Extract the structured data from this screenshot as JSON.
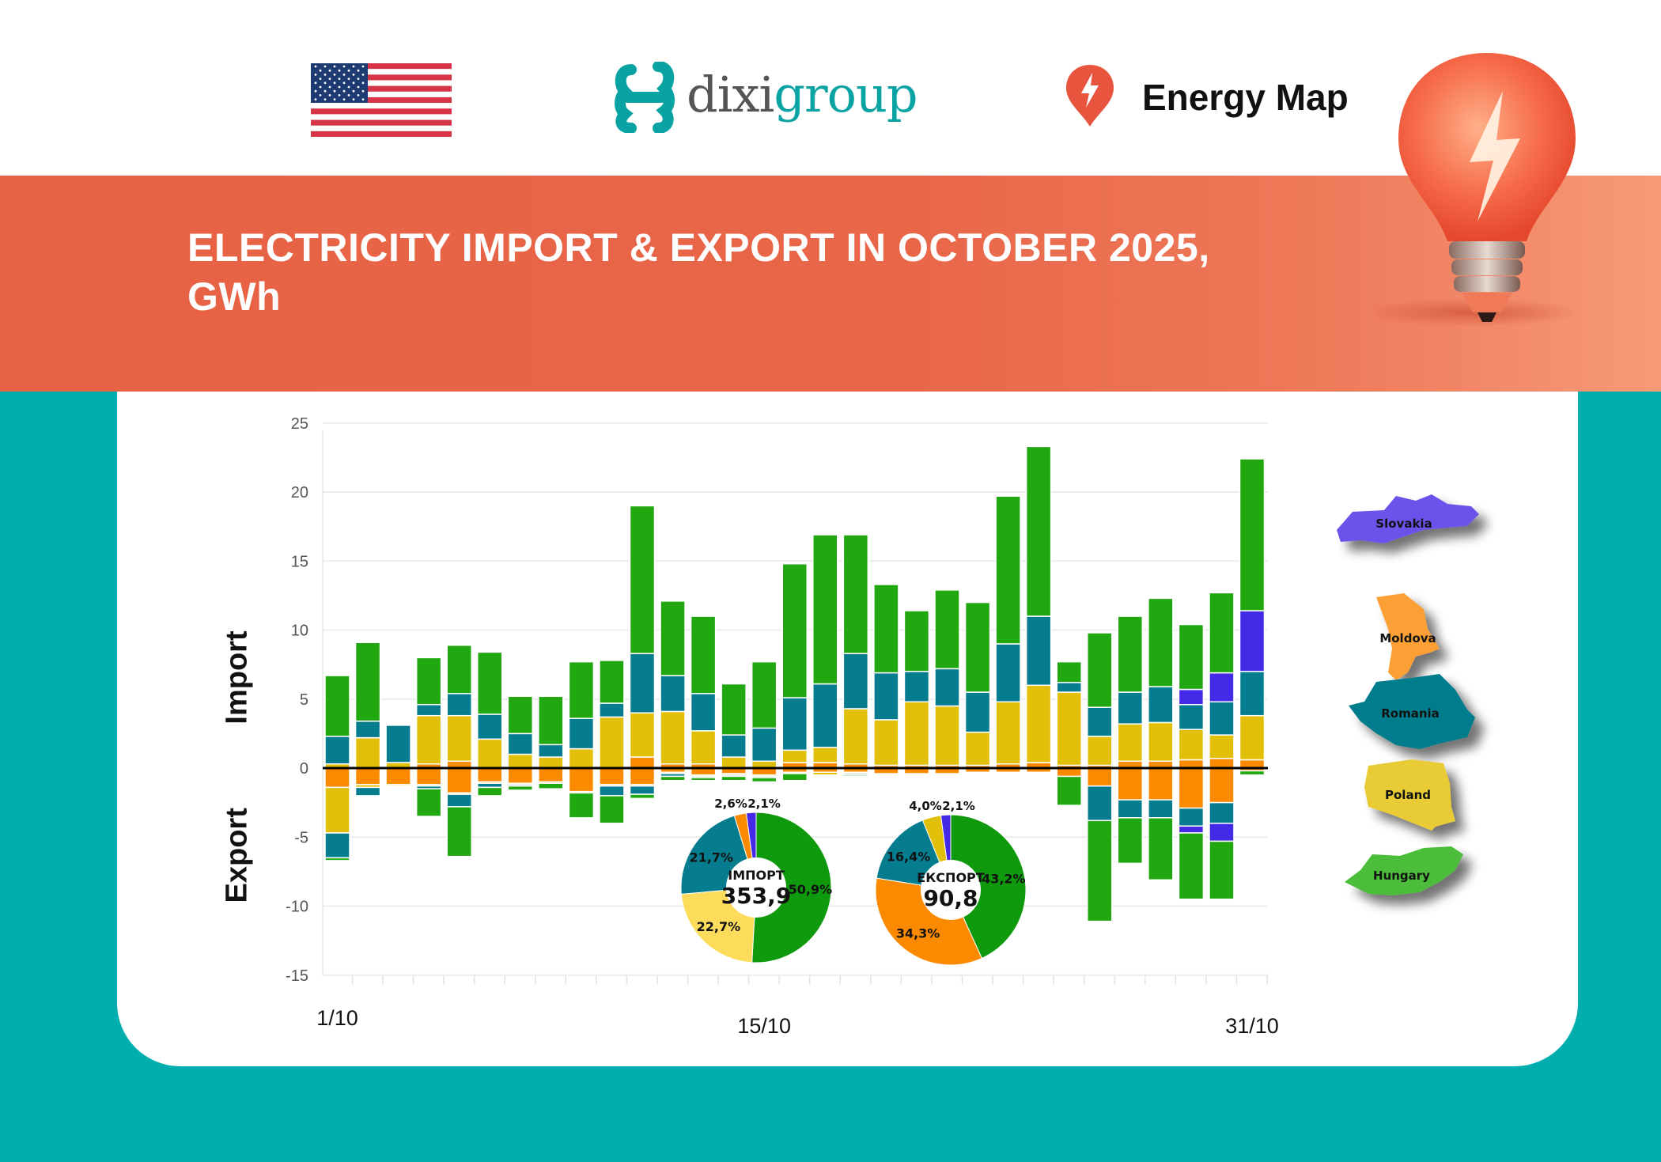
{
  "header": {
    "flag_icon": "us-flag-icon",
    "logo_part1": "dixi",
    "logo_part2": "group",
    "brand_icon": "energy-map-pin-icon",
    "brand_text": "Energy Map"
  },
  "banner": {
    "title_line1": "ELECTRICITY IMPORT & EXPORT IN OCTOBER 2025,",
    "title_line2": "GWh"
  },
  "legend": [
    {
      "name": "Slovakia",
      "color": "#6b52ea"
    },
    {
      "name": "Moldova",
      "color": "#fca035"
    },
    {
      "name": "Romania",
      "color": "#057d8d"
    },
    {
      "name": "Poland",
      "color": "#e8cb35"
    },
    {
      "name": "Hungary",
      "color": "#4cbd3a"
    }
  ],
  "chart_data": [
    {
      "type": "bar",
      "stacked": true,
      "ylabel_positive": "Import",
      "ylabel_negative": "Export",
      "ylim": [
        -15,
        25
      ],
      "yticks": [
        25,
        20,
        15,
        10,
        5,
        0,
        -5,
        -10,
        -15
      ],
      "x": [
        1,
        2,
        3,
        4,
        5,
        6,
        7,
        8,
        9,
        10,
        11,
        12,
        13,
        14,
        15,
        16,
        17,
        18,
        19,
        20,
        21,
        22,
        23,
        24,
        25,
        26,
        27,
        28,
        29,
        30,
        31
      ],
      "xtick_labels": [
        {
          "day": 1,
          "label": "1/10"
        },
        {
          "day": 15,
          "label": "15/10"
        },
        {
          "day": 31,
          "label": "31/10"
        }
      ],
      "grid": true,
      "series": [
        {
          "name": "Moldova",
          "color": "#fb8a00",
          "import": [
            0,
            0,
            0,
            0.3,
            0.5,
            0,
            0,
            0,
            0,
            0,
            0.8,
            0.3,
            0.3,
            0,
            0,
            0.4,
            0.4,
            0.3,
            0.2,
            0.2,
            0.2,
            0.2,
            0.3,
            0.4,
            0.2,
            0.2,
            0.5,
            0.5,
            0.6,
            0.7,
            0.6
          ],
          "export": [
            -1.4,
            -1.2,
            -1.2,
            -1.2,
            -1.8,
            -1.0,
            -1.1,
            -1.0,
            -1.7,
            -1.2,
            -1.2,
            -0.3,
            -0.5,
            -0.4,
            -0.5,
            -0.3,
            -0.3,
            -0.3,
            -0.4,
            -0.4,
            -0.4,
            -0.3,
            -0.3,
            -0.3,
            -0.6,
            -1.3,
            -2.3,
            -2.3,
            -2.9,
            -2.5,
            -0.2
          ]
        },
        {
          "name": "Poland",
          "color": "#e2c00a",
          "import": [
            0.3,
            2.2,
            0.4,
            3.5,
            3.3,
            2.1,
            1.0,
            0.8,
            1.4,
            3.7,
            3.2,
            3.8,
            2.4,
            0.8,
            0.5,
            0.9,
            1.1,
            4.0,
            3.3,
            4.6,
            4.3,
            2.4,
            4.5,
            5.6,
            5.3,
            2.1,
            2.7,
            2.8,
            2.2,
            1.7,
            3.2
          ],
          "export": [
            -3.3,
            -0.2,
            -0.1,
            -0.1,
            -0.1,
            -0.1,
            -0.1,
            -0.1,
            -0.1,
            -0.1,
            -0.1,
            -0.1,
            -0.1,
            -0.1,
            -0.1,
            -0.1,
            -0.2,
            -0.1,
            0,
            0,
            0,
            0,
            0,
            0,
            0,
            0,
            0,
            0,
            0,
            0,
            0
          ]
        },
        {
          "name": "Romania",
          "color": "#067d8e",
          "import": [
            2.0,
            1.2,
            2.7,
            0.8,
            1.6,
            1.8,
            1.5,
            0.9,
            2.2,
            1.0,
            4.3,
            2.6,
            2.7,
            1.6,
            2.4,
            3.8,
            4.6,
            4.0,
            3.4,
            2.2,
            2.7,
            2.9,
            4.2,
            5.0,
            0.7,
            2.1,
            2.3,
            2.6,
            1.8,
            2.4,
            3.2
          ],
          "export": [
            -1.8,
            -0.6,
            0,
            -0.2,
            -0.9,
            -0.3,
            -0.1,
            0,
            0,
            -0.7,
            -0.6,
            -0.2,
            -0.1,
            -0.1,
            -0.1,
            0,
            0,
            -0.1,
            0,
            0,
            0,
            0,
            0,
            0,
            0,
            -2.5,
            -1.3,
            -1.3,
            -1.3,
            -1.5,
            0
          ]
        },
        {
          "name": "Slovakia",
          "color": "#4429e6",
          "import": [
            0,
            0,
            0,
            0,
            0,
            0,
            0,
            0,
            0,
            0,
            0,
            0,
            0,
            0,
            0,
            0,
            0,
            0,
            0,
            0,
            0,
            0,
            0,
            0,
            0,
            0,
            0,
            0,
            1.1,
            2.1,
            4.4
          ],
          "export": [
            0,
            0,
            0,
            0,
            0,
            0,
            0,
            0,
            0,
            0,
            0,
            0,
            0,
            0,
            0,
            0,
            0,
            0,
            0,
            0,
            0,
            0,
            0,
            0,
            0,
            0,
            0,
            0,
            -0.5,
            -1.3,
            0
          ]
        },
        {
          "name": "Hungary",
          "color": "#21a811",
          "import": [
            4.4,
            5.7,
            0,
            3.4,
            3.5,
            4.5,
            2.7,
            3.5,
            4.1,
            3.1,
            10.7,
            5.4,
            5.6,
            3.7,
            4.8,
            9.7,
            10.8,
            8.6,
            6.4,
            4.4,
            5.7,
            6.5,
            10.7,
            12.3,
            1.5,
            5.4,
            5.5,
            6.4,
            4.7,
            5.8,
            11.0
          ],
          "export": [
            -0.2,
            0,
            0,
            -2.0,
            -3.6,
            -0.6,
            -0.3,
            -0.4,
            -1.8,
            -2.0,
            -0.3,
            -0.3,
            -0.2,
            -0.3,
            -0.3,
            -0.5,
            0,
            -0.1,
            0,
            0,
            0,
            0,
            0,
            0,
            -2.1,
            -7.3,
            -3.3,
            -4.5,
            -4.8,
            -4.2,
            -0.3
          ]
        }
      ]
    },
    {
      "type": "pie",
      "donut": true,
      "center_label": "ІМПОРТ",
      "center_value": "353,9",
      "slices": [
        {
          "country": "Hungary",
          "value": 50.9,
          "label": "50,9%",
          "color": "#0f9a0e"
        },
        {
          "country": "Poland",
          "value": 22.7,
          "label": "22,7%",
          "color": "#fddc5c"
        },
        {
          "country": "Romania",
          "value": 21.7,
          "label": "21,7%",
          "color": "#067d8e"
        },
        {
          "country": "Moldova",
          "value": 2.6,
          "label": "2,6%",
          "color": "#fb8a00"
        },
        {
          "country": "Slovakia",
          "value": 2.1,
          "label": "2,1%",
          "color": "#4429e6"
        }
      ]
    },
    {
      "type": "pie",
      "donut": true,
      "center_label": "ЕКСПОРТ",
      "center_value": "90,8",
      "slices": [
        {
          "country": "Hungary",
          "value": 43.2,
          "label": "43,2%",
          "color": "#0f9a0e"
        },
        {
          "country": "Moldova",
          "value": 34.3,
          "label": "34,3%",
          "color": "#fb8a00"
        },
        {
          "country": "Romania",
          "value": 16.4,
          "label": "16,4%",
          "color": "#067d8e"
        },
        {
          "country": "Poland",
          "value": 4.0,
          "label": "4,0%",
          "color": "#e2c00a"
        },
        {
          "country": "Slovakia",
          "value": 2.1,
          "label": "2,1%",
          "color": "#4429e6"
        }
      ]
    }
  ]
}
